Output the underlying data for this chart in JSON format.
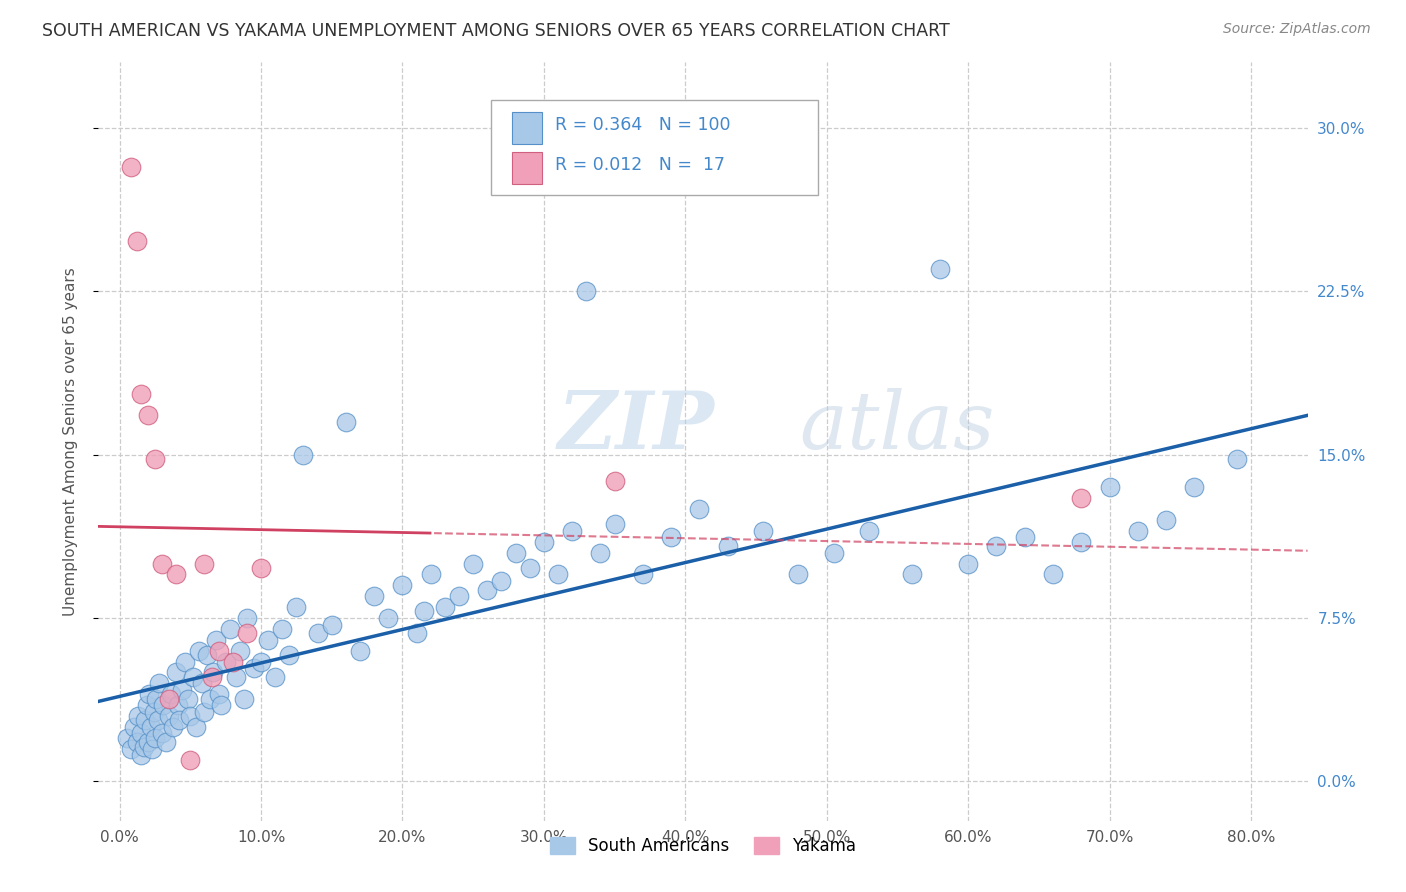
{
  "title": "SOUTH AMERICAN VS YAKAMA UNEMPLOYMENT AMONG SENIORS OVER 65 YEARS CORRELATION CHART",
  "source": "Source: ZipAtlas.com",
  "ylabel": "Unemployment Among Seniors over 65 years",
  "ytick_values": [
    0.0,
    0.075,
    0.15,
    0.225,
    0.3
  ],
  "ytick_labels": [
    "0.0%",
    "7.5%",
    "15.0%",
    "22.5%",
    "30.0%"
  ],
  "xtick_values": [
    0.0,
    0.1,
    0.2,
    0.3,
    0.4,
    0.5,
    0.6,
    0.7,
    0.8
  ],
  "xtick_labels": [
    "0.0%",
    "10.0%",
    "20.0%",
    "30.0%",
    "40.0%",
    "50.0%",
    "60.0%",
    "70.0%",
    "80.0%"
  ],
  "xlim": [
    -0.015,
    0.84
  ],
  "ylim": [
    -0.018,
    0.33
  ],
  "blue_R": 0.364,
  "blue_N": 100,
  "pink_R": 0.012,
  "pink_N": 17,
  "blue_color": "#a8c8e8",
  "pink_color": "#f0a0b8",
  "blue_edge_color": "#5590c8",
  "pink_edge_color": "#d06080",
  "blue_line_color": "#1a5fa8",
  "pink_line_color": "#d04060",
  "legend_label_blue": "South Americans",
  "legend_label_pink": "Yakama",
  "watermark_zip": "ZIP",
  "watermark_atlas": "atlas",
  "grid_color": "#cccccc",
  "background_color": "#ffffff",
  "title_color": "#333333",
  "source_color": "#888888",
  "right_ytick_color": "#4488cc",
  "blue_x": [
    0.005,
    0.008,
    0.01,
    0.012,
    0.013,
    0.015,
    0.015,
    0.017,
    0.018,
    0.019,
    0.02,
    0.021,
    0.022,
    0.023,
    0.024,
    0.025,
    0.026,
    0.027,
    0.028,
    0.03,
    0.031,
    0.033,
    0.035,
    0.036,
    0.038,
    0.04,
    0.041,
    0.042,
    0.044,
    0.046,
    0.048,
    0.05,
    0.052,
    0.054,
    0.056,
    0.058,
    0.06,
    0.062,
    0.064,
    0.066,
    0.068,
    0.07,
    0.072,
    0.075,
    0.078,
    0.082,
    0.085,
    0.088,
    0.09,
    0.095,
    0.1,
    0.105,
    0.11,
    0.115,
    0.12,
    0.125,
    0.13,
    0.14,
    0.15,
    0.16,
    0.17,
    0.18,
    0.19,
    0.2,
    0.21,
    0.215,
    0.22,
    0.23,
    0.24,
    0.25,
    0.26,
    0.27,
    0.28,
    0.29,
    0.3,
    0.31,
    0.32,
    0.33,
    0.34,
    0.35,
    0.37,
    0.39,
    0.41,
    0.43,
    0.455,
    0.48,
    0.505,
    0.53,
    0.56,
    0.58,
    0.6,
    0.62,
    0.64,
    0.66,
    0.68,
    0.7,
    0.72,
    0.74,
    0.76,
    0.79
  ],
  "blue_y": [
    0.02,
    0.015,
    0.025,
    0.018,
    0.03,
    0.012,
    0.022,
    0.016,
    0.028,
    0.035,
    0.018,
    0.04,
    0.025,
    0.015,
    0.032,
    0.02,
    0.038,
    0.028,
    0.045,
    0.022,
    0.035,
    0.018,
    0.03,
    0.04,
    0.025,
    0.05,
    0.035,
    0.028,
    0.042,
    0.055,
    0.038,
    0.03,
    0.048,
    0.025,
    0.06,
    0.045,
    0.032,
    0.058,
    0.038,
    0.05,
    0.065,
    0.04,
    0.035,
    0.055,
    0.07,
    0.048,
    0.06,
    0.038,
    0.075,
    0.052,
    0.055,
    0.065,
    0.048,
    0.07,
    0.058,
    0.08,
    0.15,
    0.068,
    0.072,
    0.165,
    0.06,
    0.085,
    0.075,
    0.09,
    0.068,
    0.078,
    0.095,
    0.08,
    0.085,
    0.1,
    0.088,
    0.092,
    0.105,
    0.098,
    0.11,
    0.095,
    0.115,
    0.225,
    0.105,
    0.118,
    0.095,
    0.112,
    0.125,
    0.108,
    0.115,
    0.095,
    0.105,
    0.115,
    0.095,
    0.235,
    0.1,
    0.108,
    0.112,
    0.095,
    0.11,
    0.135,
    0.115,
    0.12,
    0.135,
    0.148
  ],
  "pink_x": [
    0.008,
    0.012,
    0.015,
    0.02,
    0.025,
    0.03,
    0.035,
    0.04,
    0.05,
    0.06,
    0.065,
    0.07,
    0.08,
    0.09,
    0.1,
    0.35,
    0.68
  ],
  "pink_y": [
    0.282,
    0.248,
    0.178,
    0.168,
    0.148,
    0.1,
    0.038,
    0.095,
    0.01,
    0.1,
    0.048,
    0.06,
    0.055,
    0.068,
    0.098,
    0.138,
    0.13
  ]
}
